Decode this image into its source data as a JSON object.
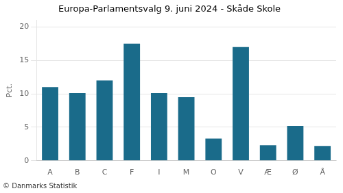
{
  "chart_data": {
    "type": "bar",
    "title": "Europa-Parlamentsvalg 9. juni 2024 - Skåde Skole",
    "categories": [
      "A",
      "B",
      "C",
      "F",
      "I",
      "M",
      "O",
      "V",
      "Æ",
      "Ø",
      "Å"
    ],
    "values": [
      11.0,
      10.1,
      12.0,
      17.5,
      10.1,
      9.5,
      3.3,
      17.0,
      2.3,
      5.2,
      2.2
    ],
    "color": "#1a6b8a",
    "ylabel": "Pct.",
    "ylim": [
      0,
      21
    ],
    "yticks": [
      0,
      5,
      10,
      15,
      20
    ],
    "grid": true,
    "annotations": [
      "© Danmarks Statistik"
    ]
  }
}
